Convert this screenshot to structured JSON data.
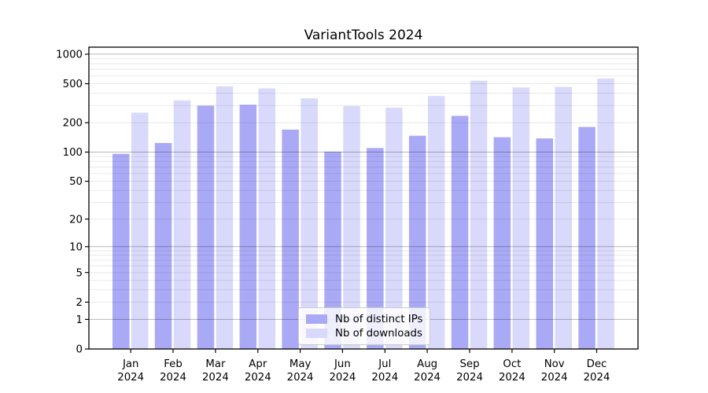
{
  "chart_data": {
    "type": "bar",
    "title": "VariantTools 2024",
    "categories": [
      "Jan 2024",
      "Feb 2024",
      "Mar 2024",
      "Apr 2024",
      "May 2024",
      "Jun 2024",
      "Jul 2024",
      "Aug 2024",
      "Sep 2024",
      "Oct 2024",
      "Nov 2024",
      "Dec 2024"
    ],
    "series": [
      {
        "name": "Nb of distinct IPs",
        "color": "#a9a9f6",
        "values": [
          96,
          124,
          299,
          305,
          170,
          101,
          110,
          147,
          235,
          142,
          138,
          181
        ]
      },
      {
        "name": "Nb of downloads",
        "color": "#d9d9fb",
        "values": [
          253,
          338,
          470,
          448,
          355,
          296,
          285,
          374,
          537,
          458,
          464,
          565
        ]
      }
    ],
    "y_axis": {
      "scale": "log10(1+value)",
      "tick_values": [
        0,
        1,
        2,
        5,
        10,
        20,
        50,
        100,
        200,
        500,
        1000
      ],
      "ylim": [
        0,
        1000
      ]
    },
    "grid": true,
    "legend_position": "bottom-center",
    "colors": {
      "axis": "#000000",
      "grid_minor": "rgba(0,0,0,0.085)",
      "grid_major": "rgba(0,0,0,0.28)",
      "background": "#ffffff",
      "text": "#000000"
    }
  }
}
